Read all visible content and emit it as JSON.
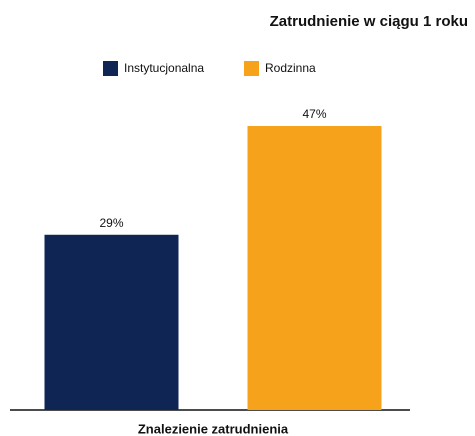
{
  "chart_data": {
    "type": "bar",
    "title": "Zatrudnienie w ciągu 1 roku",
    "categories": [
      "Znalezienie zatrudnienia"
    ],
    "series": [
      {
        "name": "Instytucjonalna",
        "color": "#0f2654",
        "values": [
          29
        ],
        "value_labels": [
          "29%"
        ]
      },
      {
        "name": "Rodzinna",
        "color": "#f7a21b",
        "values": [
          47
        ],
        "value_labels": [
          "47%"
        ]
      }
    ]
  }
}
